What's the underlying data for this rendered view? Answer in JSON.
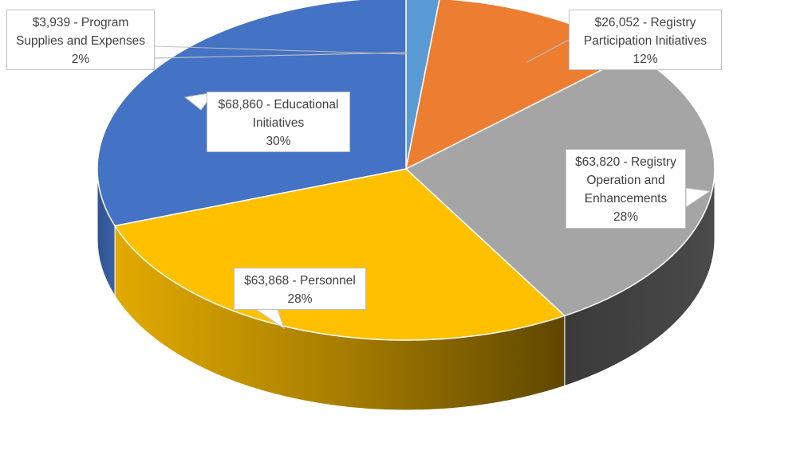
{
  "chart_data": {
    "type": "pie",
    "style": "3d-pie",
    "title": "",
    "slices": [
      {
        "value_label": "$3,939",
        "name": "Program Supplies and Expenses",
        "value": 3939,
        "percent_label": "2%",
        "color": "#5B9BD5"
      },
      {
        "value_label": "$26,052",
        "name": "Registry Participation Initiatives",
        "value": 26052,
        "percent_label": "12%",
        "color": "#ED7D31"
      },
      {
        "value_label": "$63,820",
        "name": "Registry Operation and Enhancements",
        "value": 63820,
        "percent_label": "28%",
        "color": "#A5A5A5"
      },
      {
        "value_label": "$63,868",
        "name": "Personnel",
        "value": 63868,
        "percent_label": "28%",
        "color": "#FFC000"
      },
      {
        "value_label": "$68,860",
        "name": "Educational Initiatives",
        "value": 68860,
        "percent_label": "30%",
        "color": "#4472C4"
      }
    ]
  },
  "labels": [
    {
      "lines": [
        "$3,939 - Program",
        "Supplies and Expenses",
        "2%"
      ]
    },
    {
      "lines": [
        "$26,052 - Registry",
        "Participation Initiatives",
        "12%"
      ]
    },
    {
      "lines": [
        "$63,820 - Registry",
        "Operation and",
        "Enhancements",
        "28%"
      ]
    },
    {
      "lines": [
        "$63,868 - Personnel",
        "28%"
      ]
    },
    {
      "lines": [
        "$68,860 - Educational",
        "Initiatives",
        "30%"
      ]
    }
  ]
}
